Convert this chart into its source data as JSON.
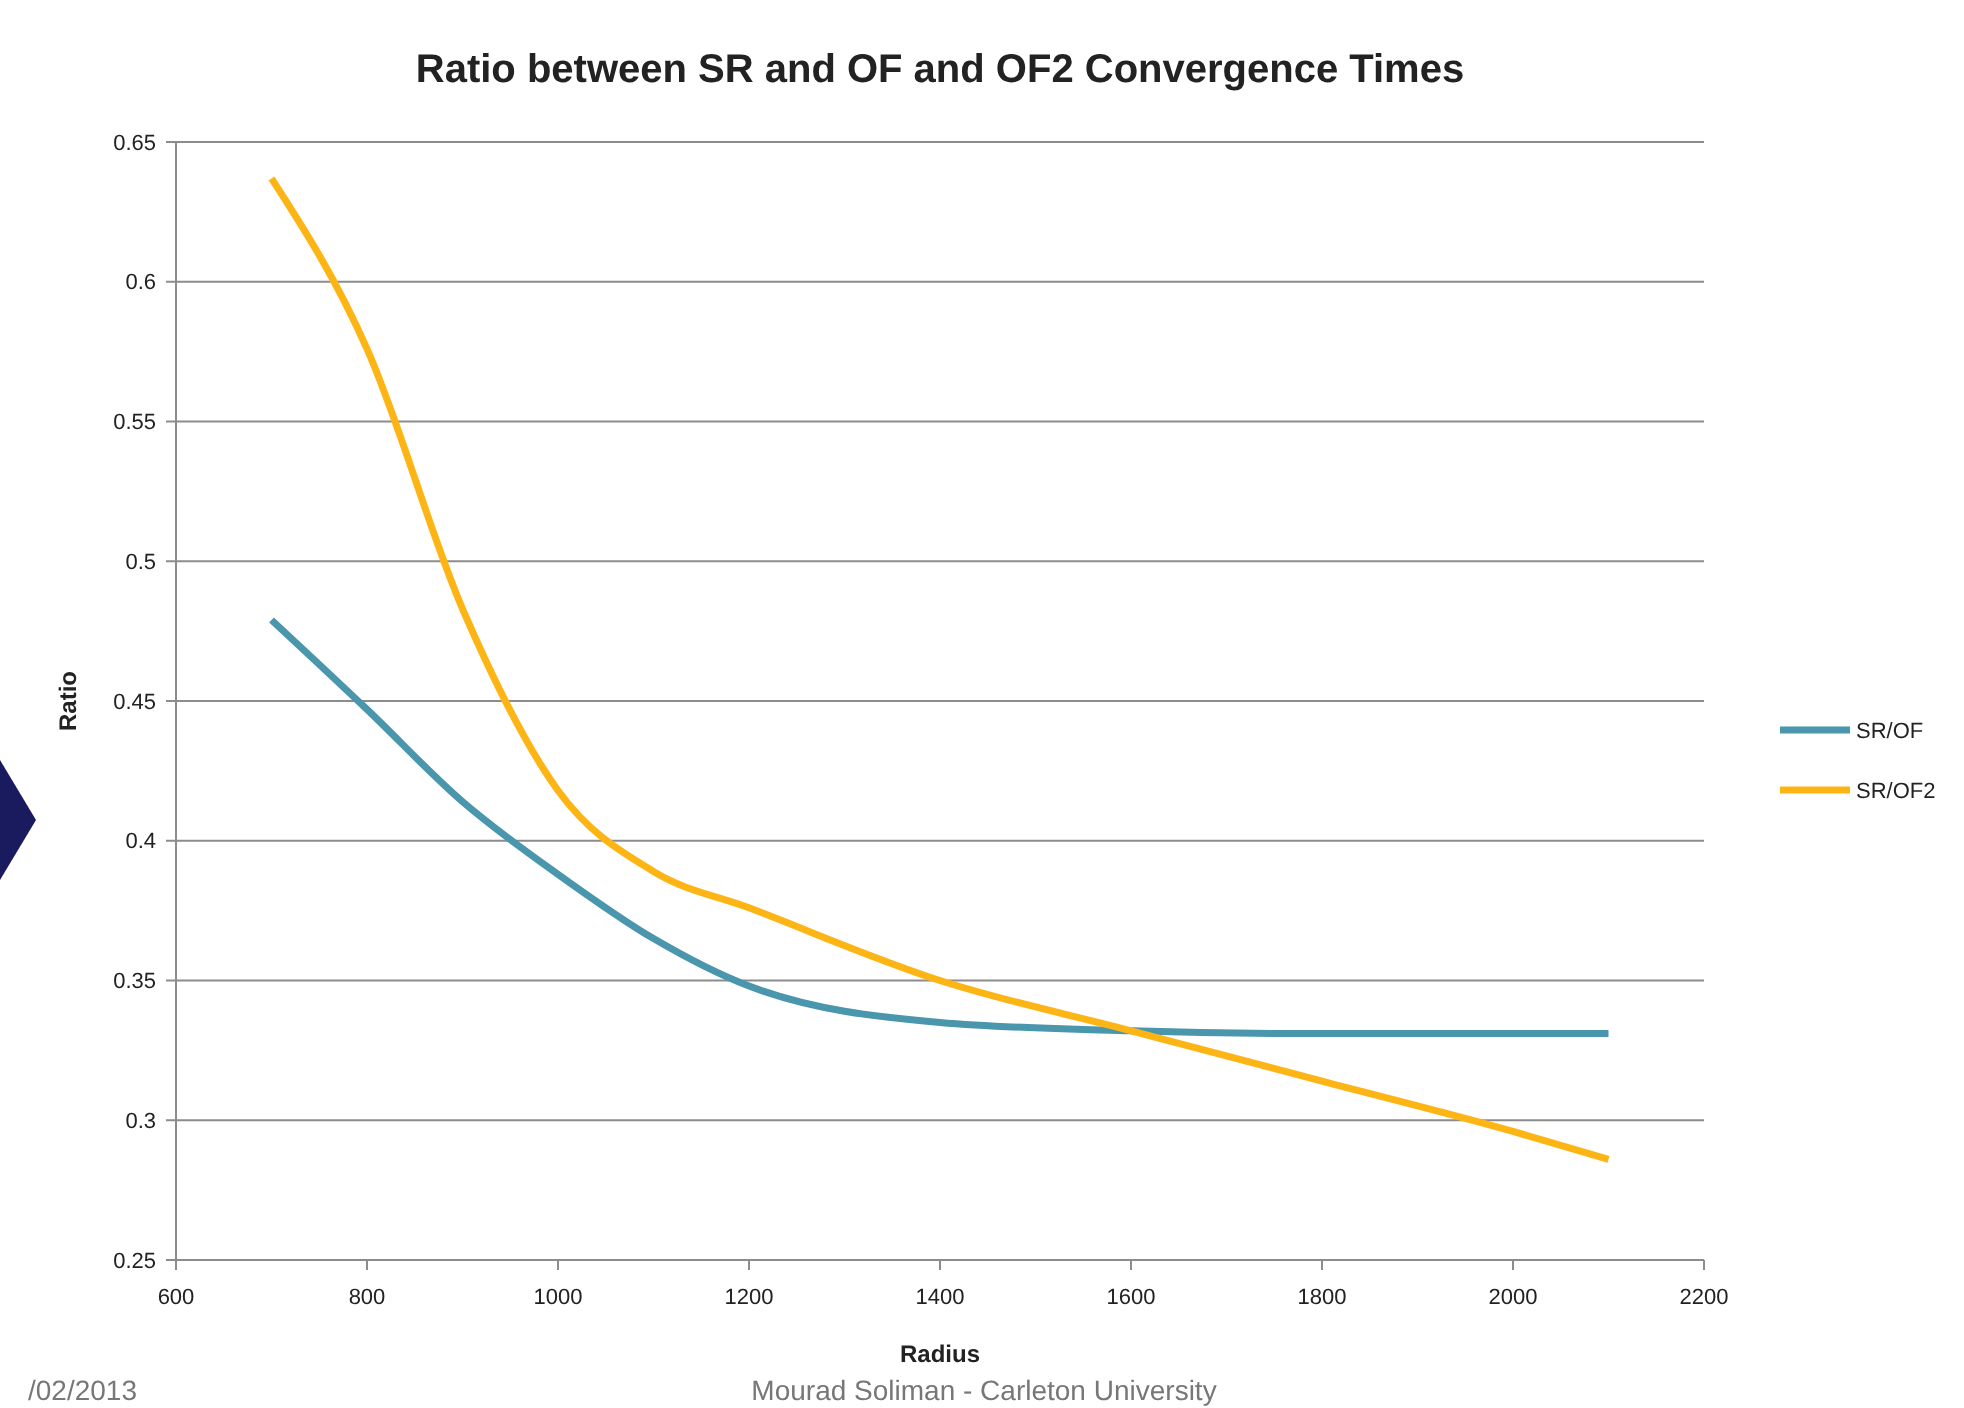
{
  "chart_data": {
    "type": "line",
    "title": "Ratio between SR and OF and OF2 Convergence Times",
    "xlabel": "Radius",
    "ylabel": "Ratio",
    "xlim": [
      600,
      2200
    ],
    "xticks": [
      600,
      800,
      1000,
      1200,
      1400,
      1600,
      1800,
      2000,
      2200
    ],
    "ylim": [
      0.25,
      0.65
    ],
    "yticks": [
      0.25,
      0.3,
      0.35,
      0.4,
      0.45,
      0.5,
      0.55,
      0.6,
      0.65
    ],
    "grid": "y",
    "legend": "right",
    "marker": "none",
    "line_style": "solid",
    "series": [
      {
        "name": "SR/OF",
        "color": "#4a96ad",
        "x": [
          700,
          800,
          900,
          1000,
          1100,
          1200,
          1400,
          1600,
          1800,
          2000,
          2100
        ],
        "values": [
          0.479,
          0.447,
          0.414,
          0.388,
          0.365,
          0.348,
          0.335,
          0.332,
          0.331,
          0.331,
          0.331
        ]
      },
      {
        "name": "SR/OF2",
        "color": "#fdb515",
        "x": [
          700,
          800,
          900,
          1000,
          1100,
          1200,
          1400,
          1600,
          1800,
          2000,
          2100
        ],
        "values": [
          0.637,
          0.576,
          0.483,
          0.418,
          0.389,
          0.376,
          0.35,
          0.332,
          0.314,
          0.296,
          0.286
        ]
      }
    ],
    "annotations": [
      "/02/2013",
      "Mourad Soliman - Carleton University"
    ]
  }
}
